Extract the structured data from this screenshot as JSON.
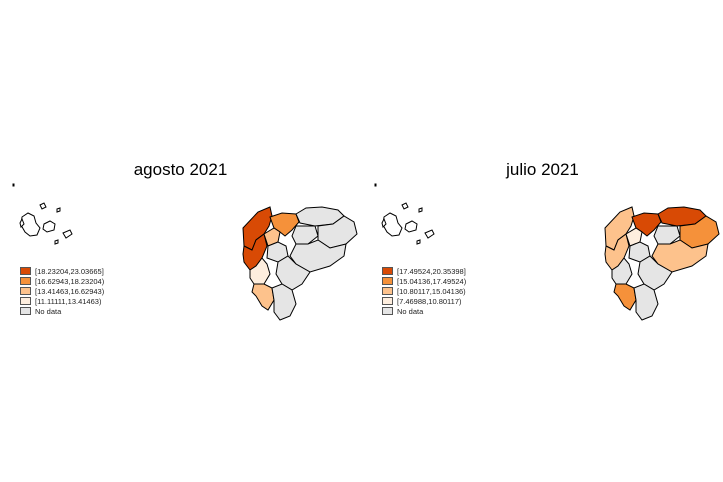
{
  "colors": {
    "no_data": "#e5e5e5",
    "outline": "#000000",
    "class1": "#d84a05",
    "class2": "#f5913a",
    "class3": "#fdc28c",
    "class4": "#feeede"
  },
  "panels": [
    {
      "title": "agosto 2021",
      "legend": [
        {
          "label": "[18.23204,23.03665]",
          "color": "#d84a05"
        },
        {
          "label": "[16.62943,18.23204)",
          "color": "#f5913a"
        },
        {
          "label": "[13.41463,16.62943)",
          "color": "#fdc28c"
        },
        {
          "label": "[11.11111,13.41463)",
          "color": "#feeede"
        },
        {
          "label": "No data",
          "color": "#e5e5e5"
        }
      ],
      "region_fills": [
        "#d84a05",
        "#f5913a",
        "#e5e5e5",
        "#e5e5e5",
        "#d84a05",
        "#fdc28c",
        "#e5e5e5",
        "#feeede",
        "#e5e5e5",
        "#e5e5e5",
        "#fdc28c",
        "#e5e5e5",
        "#e5e5e5"
      ]
    },
    {
      "title": "julio 2021",
      "legend": [
        {
          "label": "[17.49524,20.35398]",
          "color": "#d84a05"
        },
        {
          "label": "[15.04136,17.49524)",
          "color": "#f5913a"
        },
        {
          "label": "[10.80117,15.04136)",
          "color": "#fdc28c"
        },
        {
          "label": "[7.46988,10.80117)",
          "color": "#feeede"
        },
        {
          "label": "No data",
          "color": "#e5e5e5"
        }
      ],
      "region_fills": [
        "#fdc28c",
        "#d84a05",
        "#d84a05",
        "#e5e5e5",
        "#fdc28c",
        "#feeede",
        "#f5913a",
        "#e5e5e5",
        "#e5e5e5",
        "#fdc28c",
        "#f5913a",
        "#e5e5e5",
        "#e5e5e5"
      ]
    }
  ]
}
